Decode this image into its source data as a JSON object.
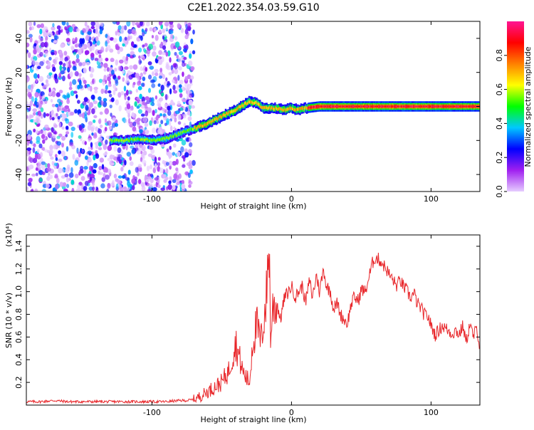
{
  "figure_title": "C2E1.2022.354.03.59.G10",
  "chart_data": [
    {
      "type": "heatmap",
      "title": "C2E1.2022.354.03.59.G10",
      "xlabel": "Height of straight line (km)",
      "ylabel": "Frequency (Hz)",
      "xlim": [
        -190,
        135
      ],
      "ylim": [
        -50,
        50
      ],
      "x_ticks": [
        -100,
        0,
        100
      ],
      "y_ticks": [
        -40,
        -20,
        0,
        20,
        40
      ],
      "grid": false,
      "noise_region_x": [
        -190,
        -70
      ],
      "signal_track": {
        "x": [
          -130,
          -120,
          -110,
          -100,
          -90,
          -80,
          -70,
          -60,
          -50,
          -40,
          -30,
          -25,
          -20,
          -15,
          -10,
          -5,
          0,
          5,
          10,
          20,
          40,
          60,
          80,
          100,
          120,
          135
        ],
        "y": [
          -20,
          -20,
          -19,
          -20,
          -19,
          -16,
          -13,
          -10,
          -6,
          -2,
          3,
          2,
          -1,
          -1,
          -1,
          -2,
          -1,
          -2,
          -1,
          0,
          0,
          0,
          0,
          0,
          0,
          0
        ]
      },
      "colorbar": {
        "label": "Normalized spectral amplitude",
        "range": [
          0.0,
          1.0
        ],
        "ticks": [
          0.0,
          0.2,
          0.4,
          0.6,
          0.8
        ],
        "colors": [
          "#e6ccff",
          "#a020f0",
          "#0000ff",
          "#00c8ff",
          "#00ff00",
          "#ffff00",
          "#ff8000",
          "#ff0000",
          "#ff1493"
        ]
      }
    },
    {
      "type": "line",
      "xlabel": "Height of straight line (km)",
      "ylabel": "SNR (10 * v/v)",
      "y_multiplier_label": "(x10⁴)",
      "xlim": [
        -190,
        135
      ],
      "ylim": [
        0,
        1.5
      ],
      "x_ticks": [
        -100,
        0,
        100
      ],
      "y_ticks": [
        0.2,
        0.4,
        0.6,
        0.8,
        1.0,
        1.2,
        1.4
      ],
      "line_color": "#e8262a",
      "grid": false,
      "series": [
        {
          "x": [
            -190,
            -180,
            -170,
            -160,
            -150,
            -140,
            -130,
            -120,
            -110,
            -100,
            -90,
            -80,
            -75,
            -70,
            -65,
            -60,
            -55,
            -50,
            -45,
            -40,
            -37,
            -35,
            -33,
            -30,
            -28,
            -25,
            -22,
            -20,
            -18,
            -16,
            -15,
            -13,
            -10,
            -8,
            -5,
            -2,
            0,
            3,
            5,
            8,
            10,
            13,
            15,
            18,
            20,
            23,
            25,
            28,
            30,
            33,
            35,
            38,
            40,
            43,
            45,
            48,
            50,
            53,
            55,
            58,
            60,
            63,
            65,
            68,
            70,
            73,
            75,
            78,
            80,
            83,
            85,
            88,
            90,
            93,
            95,
            98,
            100,
            103,
            105,
            108,
            110,
            113,
            115,
            118,
            120,
            123,
            125,
            128,
            130,
            133,
            135
          ],
          "y": [
            0.03,
            0.03,
            0.04,
            0.03,
            0.03,
            0.03,
            0.03,
            0.03,
            0.03,
            0.03,
            0.03,
            0.04,
            0.04,
            0.05,
            0.08,
            0.12,
            0.16,
            0.2,
            0.3,
            0.55,
            0.4,
            0.3,
            0.25,
            0.2,
            0.55,
            0.7,
            0.55,
            0.75,
            0.95,
            1.45,
            0.6,
            0.9,
            0.88,
            0.75,
            0.95,
            1.0,
            1.05,
            0.95,
            1.0,
            1.05,
            0.9,
            1.1,
            0.95,
            1.15,
            1.0,
            1.2,
            1.05,
            1.0,
            0.85,
            0.9,
            0.8,
            0.75,
            0.72,
            0.9,
            0.95,
            0.92,
            1.02,
            1.0,
            1.1,
            1.25,
            1.3,
            1.28,
            1.25,
            1.2,
            1.15,
            1.1,
            1.05,
            1.1,
            1.05,
            1.0,
            0.95,
            0.98,
            0.9,
            0.85,
            0.8,
            0.78,
            0.7,
            0.62,
            0.65,
            0.7,
            0.68,
            0.65,
            0.63,
            0.66,
            0.62,
            0.7,
            0.55,
            0.72,
            0.6,
            0.68,
            0.5
          ]
        }
      ]
    }
  ]
}
